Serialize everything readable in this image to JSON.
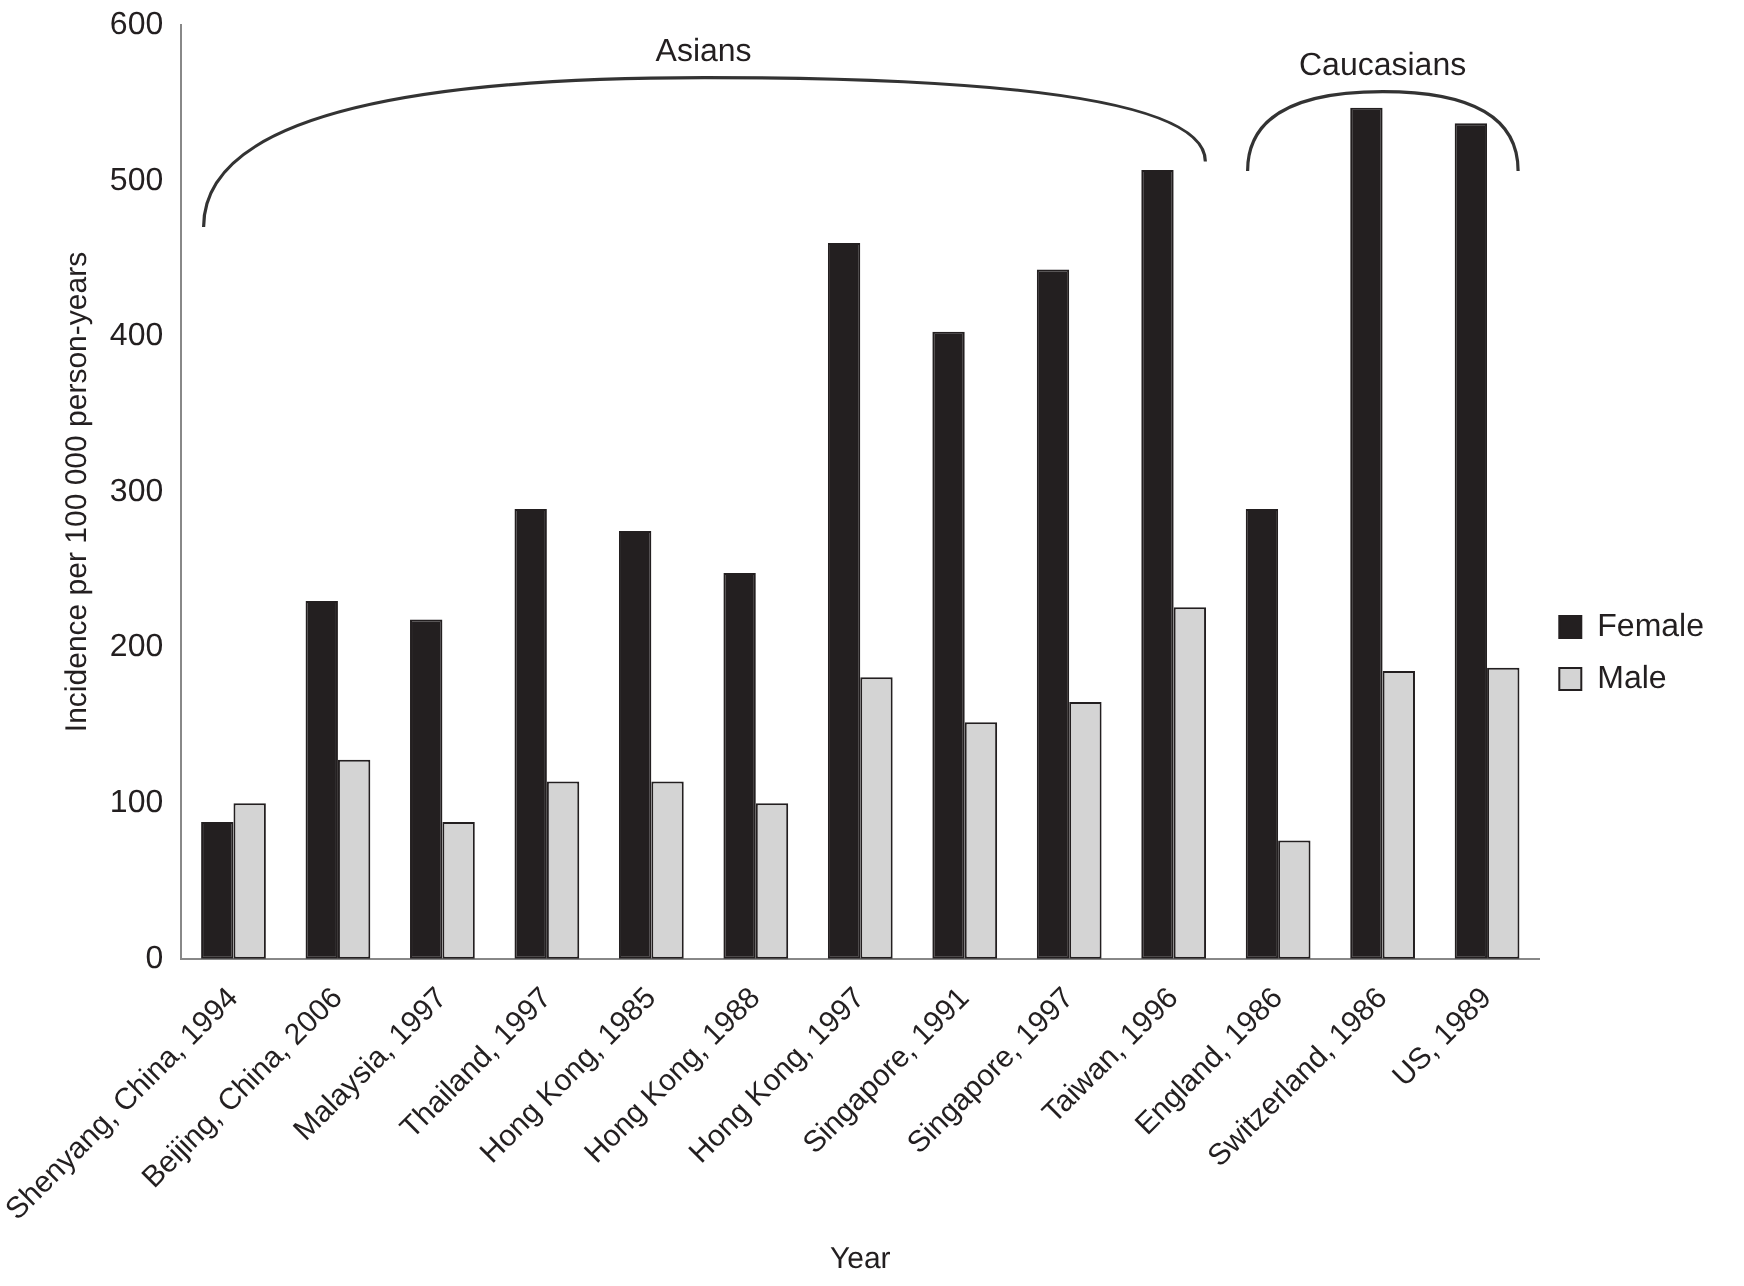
{
  "chart_data": {
    "type": "bar",
    "xlabel": "Year",
    "ylabel": "Incidence per 100 000 person-years",
    "categories": [
      "Shenyang, China, 1994",
      "Beijing, China, 2006",
      "Malaysia, 1997",
      "Thailand, 1997",
      "Hong Kong, 1985",
      "Hong Kong, 1988",
      "Hong Kong, 1997",
      "Singapore, 1991",
      "Singapore, 1997",
      "Taiwan, 1996",
      "England, 1986",
      "Switzerland, 1986",
      "US, 1989"
    ],
    "series": [
      {
        "name": "Female",
        "color": "#231f20",
        "values": [
          88,
          230,
          218,
          289,
          275,
          248,
          460,
          403,
          443,
          507,
          289,
          547,
          537
        ]
      },
      {
        "name": "Male",
        "color": "#d4d4d4",
        "values": [
          100,
          128,
          88,
          114,
          114,
          100,
          181,
          152,
          165,
          226,
          76,
          185,
          187
        ]
      }
    ],
    "ylim": [
      0,
      600
    ],
    "yticks": [
      0,
      100,
      200,
      300,
      400,
      500,
      600
    ],
    "grid": false,
    "legend": "right",
    "annotations": [
      "Asians",
      "Caucasians"
    ]
  }
}
